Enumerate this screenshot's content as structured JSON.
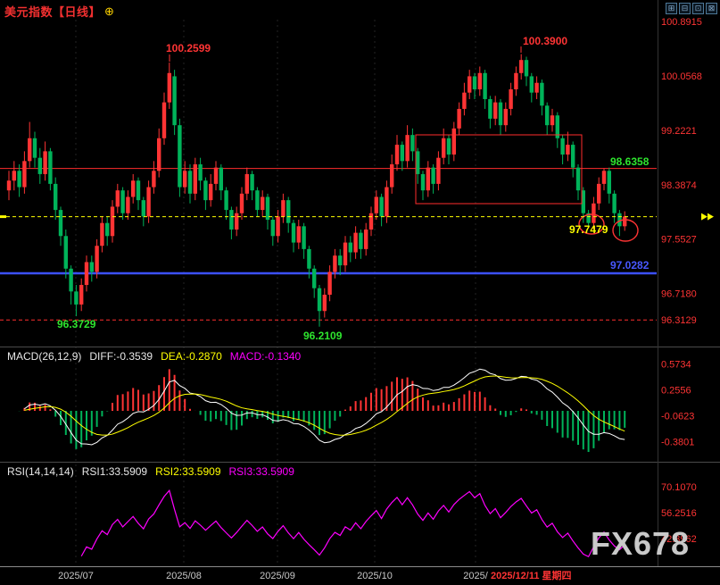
{
  "window": {
    "title": "美元指数【日线】",
    "title_badge": "⊕",
    "toolbar": [
      "⊞",
      "⊟",
      "⊡",
      "⊠"
    ]
  },
  "watermark": "FX678",
  "indicators": {
    "macd": {
      "name": "MACD(26,12,9)",
      "diff_label": "DIFF:-0.3539",
      "dea_label": "DEA:-0.2870",
      "macd_label": "MACD:-0.1340"
    },
    "rsi": {
      "name": "RSI(14,14,14)",
      "rsi1_label": "RSI1:33.5909",
      "rsi2_label": "RSI2:33.5909",
      "rsi3_label": "RSI3:33.5909"
    }
  },
  "chart_data": [
    {
      "type": "candlestick",
      "symbol": "美元指数",
      "period": "日线",
      "ylim": [
        95.95,
        100.95
      ],
      "y_axis_labels": [
        "100.8915",
        "100.0568",
        "99.2221",
        "98.3874",
        "97.5527",
        "96.7180",
        "96.3129"
      ],
      "x_ticks": [
        {
          "label": "2025/07",
          "x": 85
        },
        {
          "label": "2025/08",
          "x": 206
        },
        {
          "label": "2025/09",
          "x": 311
        },
        {
          "label": "2025/10",
          "x": 420
        },
        {
          "label": "2025/",
          "x": 533
        }
      ],
      "current_date_label": "2025/12/11 星期四",
      "current_price": 97.897,
      "overlay_lines": [
        {
          "name": "resistance-line",
          "price": 98.6358,
          "color": "#ff2d2d",
          "dash": null,
          "width": 1
        },
        {
          "name": "support-line",
          "price": 97.0282,
          "color": "#3c50ff",
          "dash": null,
          "width": 2.5
        },
        {
          "name": "lower-ref-line",
          "price": 96.3129,
          "color": "#ff2d2d",
          "dash": "4,3",
          "width": 1
        },
        {
          "name": "current-price-line",
          "price": 97.897,
          "color": "#ffff00",
          "dash": "4,3",
          "width": 1
        }
      ],
      "annotations": [
        {
          "text": "100.2599",
          "x": 186,
          "y": 58,
          "color": "#ff3434",
          "tick": {
            "x": 190,
            "y1": 61,
            "y2": 69
          }
        },
        {
          "text": "100.3900",
          "x": 586,
          "y": 50,
          "color": "#ff3434",
          "tick": {
            "x": 584,
            "y1": 52,
            "y2": 59
          }
        },
        {
          "text": "96.3729",
          "x": 64,
          "y": 367,
          "color": "#2ee52e"
        },
        {
          "text": "96.2109",
          "x": 340,
          "y": 380,
          "color": "#2ee52e"
        },
        {
          "text": "98.6358",
          "x": 684,
          "y": 185,
          "color": "#2ee52e"
        },
        {
          "text": "97.7479",
          "x": 638,
          "y": 261,
          "color": "#ffff00"
        },
        {
          "text": "97.0282",
          "x": 684,
          "y": 301,
          "color": "#4858ff"
        }
      ],
      "drawings": {
        "box": {
          "x": 466,
          "y": 151,
          "w": 186,
          "h": 77,
          "color": "#ff2d2d"
        },
        "ellipses": [
          {
            "cx": 663,
            "cy": 251,
            "rx": 14,
            "ry": 11
          },
          {
            "cx": 701,
            "cy": 258,
            "rx": 14,
            "ry": 12
          }
        ]
      },
      "candles": [
        [
          98.3,
          98.6,
          98.15,
          98.45
        ],
        [
          98.45,
          98.75,
          98.3,
          98.6
        ],
        [
          98.6,
          98.7,
          98.2,
          98.35
        ],
        [
          98.35,
          98.9,
          98.25,
          98.75
        ],
        [
          98.75,
          99.35,
          98.65,
          99.1
        ],
        [
          99.1,
          99.2,
          98.65,
          98.8
        ],
        [
          98.8,
          98.95,
          98.4,
          98.55
        ],
        [
          98.55,
          99.05,
          98.45,
          98.9
        ],
        [
          98.9,
          98.95,
          98.3,
          98.4
        ],
        [
          98.4,
          98.5,
          97.85,
          98.0
        ],
        [
          98.0,
          98.05,
          97.45,
          97.6
        ],
        [
          97.6,
          97.7,
          96.95,
          97.1
        ],
        [
          97.1,
          97.15,
          96.55,
          96.75
        ],
        [
          96.75,
          96.85,
          96.37,
          96.55
        ],
        [
          96.55,
          96.95,
          96.45,
          96.85
        ],
        [
          96.85,
          97.3,
          96.75,
          97.2
        ],
        [
          97.2,
          97.3,
          96.9,
          97.05
        ],
        [
          97.05,
          97.55,
          96.95,
          97.45
        ],
        [
          97.45,
          97.9,
          97.35,
          97.8
        ],
        [
          97.8,
          97.9,
          97.45,
          97.6
        ],
        [
          97.6,
          98.15,
          97.5,
          98.05
        ],
        [
          98.05,
          98.4,
          97.95,
          98.3
        ],
        [
          98.3,
          98.35,
          97.85,
          97.95
        ],
        [
          97.95,
          98.3,
          97.85,
          98.2
        ],
        [
          98.2,
          98.55,
          98.1,
          98.45
        ],
        [
          98.45,
          98.5,
          98.0,
          98.15
        ],
        [
          98.15,
          98.2,
          97.75,
          97.9
        ],
        [
          97.9,
          98.45,
          97.8,
          98.35
        ],
        [
          98.35,
          98.75,
          98.25,
          98.6
        ],
        [
          98.6,
          99.25,
          98.5,
          99.1
        ],
        [
          99.1,
          99.8,
          99.0,
          99.65
        ],
        [
          99.65,
          100.26,
          99.55,
          100.1
        ],
        [
          100.05,
          100.15,
          99.15,
          99.3
        ],
        [
          99.3,
          99.4,
          98.2,
          98.35
        ],
        [
          98.35,
          98.75,
          98.25,
          98.6
        ],
        [
          98.6,
          98.7,
          98.1,
          98.25
        ],
        [
          98.25,
          98.8,
          98.15,
          98.7
        ],
        [
          98.7,
          98.8,
          98.3,
          98.45
        ],
        [
          98.45,
          98.5,
          98.0,
          98.15
        ],
        [
          98.15,
          98.55,
          98.05,
          98.4
        ],
        [
          98.4,
          98.75,
          98.3,
          98.65
        ],
        [
          98.65,
          98.7,
          98.15,
          98.3
        ],
        [
          98.3,
          98.35,
          97.85,
          98.0
        ],
        [
          98.0,
          98.05,
          97.55,
          97.7
        ],
        [
          97.7,
          98.05,
          97.6,
          97.95
        ],
        [
          97.95,
          98.35,
          97.85,
          98.25
        ],
        [
          98.25,
          98.65,
          98.15,
          98.55
        ],
        [
          98.55,
          98.6,
          98.15,
          98.3
        ],
        [
          98.3,
          98.35,
          97.9,
          98.0
        ],
        [
          98.0,
          98.3,
          97.9,
          98.2
        ],
        [
          98.2,
          98.25,
          97.7,
          97.85
        ],
        [
          97.85,
          97.9,
          97.45,
          97.6
        ],
        [
          97.6,
          98.0,
          97.5,
          97.9
        ],
        [
          97.9,
          98.25,
          97.8,
          98.15
        ],
        [
          98.15,
          98.2,
          97.65,
          97.8
        ],
        [
          97.8,
          97.85,
          97.35,
          97.5
        ],
        [
          97.5,
          97.85,
          97.4,
          97.75
        ],
        [
          97.75,
          97.8,
          97.25,
          97.4
        ],
        [
          97.4,
          97.45,
          96.95,
          97.1
        ],
        [
          97.1,
          97.15,
          96.65,
          96.8
        ],
        [
          96.8,
          96.85,
          96.21,
          96.45
        ],
        [
          96.45,
          96.8,
          96.35,
          96.7
        ],
        [
          96.7,
          97.15,
          96.6,
          97.05
        ],
        [
          97.05,
          97.4,
          96.95,
          97.3
        ],
        [
          97.3,
          97.4,
          97.0,
          97.15
        ],
        [
          97.15,
          97.6,
          97.05,
          97.5
        ],
        [
          97.5,
          97.6,
          97.2,
          97.35
        ],
        [
          97.35,
          97.75,
          97.25,
          97.65
        ],
        [
          97.65,
          97.7,
          97.25,
          97.4
        ],
        [
          97.4,
          97.8,
          97.3,
          97.7
        ],
        [
          97.7,
          98.05,
          97.6,
          97.95
        ],
        [
          97.95,
          98.3,
          97.85,
          98.2
        ],
        [
          98.2,
          98.25,
          97.75,
          97.9
        ],
        [
          97.9,
          98.45,
          97.8,
          98.35
        ],
        [
          98.35,
          98.85,
          98.25,
          98.7
        ],
        [
          98.7,
          99.15,
          98.6,
          99.0
        ],
        [
          99.0,
          99.05,
          98.6,
          98.75
        ],
        [
          98.75,
          99.3,
          98.65,
          99.15
        ],
        [
          99.15,
          99.25,
          98.75,
          98.9
        ],
        [
          98.9,
          98.95,
          98.4,
          98.55
        ],
        [
          98.55,
          98.6,
          98.15,
          98.3
        ],
        [
          98.3,
          98.75,
          98.2,
          98.65
        ],
        [
          98.65,
          98.7,
          98.25,
          98.4
        ],
        [
          98.4,
          98.9,
          98.3,
          98.8
        ],
        [
          98.8,
          99.25,
          98.7,
          99.1
        ],
        [
          99.1,
          99.15,
          98.7,
          98.85
        ],
        [
          98.85,
          99.35,
          98.75,
          99.25
        ],
        [
          99.25,
          99.65,
          99.15,
          99.55
        ],
        [
          99.55,
          99.95,
          99.45,
          99.8
        ],
        [
          99.8,
          100.15,
          99.7,
          100.05
        ],
        [
          100.05,
          100.1,
          99.7,
          99.85
        ],
        [
          99.85,
          100.2,
          99.75,
          100.1
        ],
        [
          100.1,
          100.15,
          99.55,
          99.7
        ],
        [
          99.7,
          99.75,
          99.25,
          99.4
        ],
        [
          99.4,
          99.75,
          99.3,
          99.65
        ],
        [
          99.65,
          99.7,
          99.15,
          99.3
        ],
        [
          99.3,
          99.65,
          99.2,
          99.55
        ],
        [
          99.55,
          99.95,
          99.45,
          99.85
        ],
        [
          99.85,
          100.2,
          99.75,
          100.1
        ],
        [
          100.1,
          100.39,
          100.0,
          100.3
        ],
        [
          100.3,
          100.35,
          99.9,
          100.05
        ],
        [
          100.05,
          100.1,
          99.65,
          99.8
        ],
        [
          99.8,
          100.05,
          99.7,
          99.95
        ],
        [
          99.95,
          100.0,
          99.45,
          99.6
        ],
        [
          99.6,
          99.65,
          99.15,
          99.3
        ],
        [
          99.3,
          99.55,
          99.2,
          99.45
        ],
        [
          99.45,
          99.5,
          98.95,
          99.1
        ],
        [
          99.1,
          99.15,
          98.7,
          98.85
        ],
        [
          98.85,
          99.2,
          98.75,
          99.0
        ],
        [
          99.0,
          99.05,
          98.5,
          98.65
        ],
        [
          98.65,
          98.7,
          98.15,
          98.3
        ],
        [
          98.3,
          98.35,
          97.8,
          97.95
        ],
        [
          97.95,
          98.0,
          97.75,
          97.8
        ],
        [
          97.8,
          98.2,
          97.7,
          98.1
        ],
        [
          98.1,
          98.5,
          98.0,
          98.4
        ],
        [
          98.4,
          98.64,
          98.3,
          98.6
        ],
        [
          98.6,
          98.65,
          98.1,
          98.25
        ],
        [
          98.25,
          98.3,
          97.8,
          97.95
        ],
        [
          97.95,
          98.0,
          97.6,
          97.75
        ],
        [
          97.75,
          97.98,
          97.68,
          97.9
        ]
      ]
    },
    {
      "type": "bar",
      "name": "MACD",
      "y_axis_labels": [
        "0.5734",
        "0.2556",
        "-0.0623",
        "-0.3801"
      ],
      "values": {
        "diff": -0.3539,
        "dea": -0.287,
        "macd": -0.134
      }
    },
    {
      "type": "line",
      "name": "RSI",
      "y_axis_labels": [
        "70.1070",
        "56.2516",
        "42.3962"
      ],
      "values": {
        "rsi1": 33.5909,
        "rsi2": 33.5909,
        "rsi3": 33.5909
      }
    }
  ]
}
